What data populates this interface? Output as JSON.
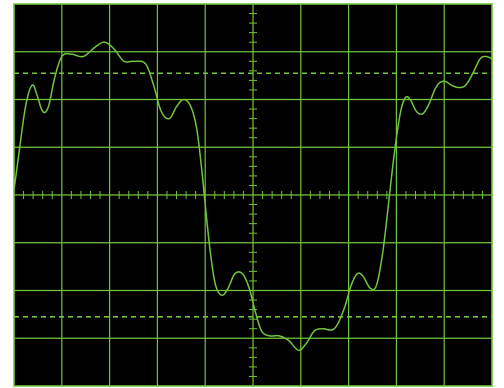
{
  "oscilloscope": {
    "screen_color": "#000000",
    "graticule_color": "#71c43f",
    "trace_color": "#71c43f",
    "cursor_line_color": "#71c43f",
    "grid": {
      "major_divisions_x": 10,
      "major_divisions_y": 8,
      "minor_ticks_per_division": 5,
      "dashed_cursor_lines": true
    }
  },
  "chart_data": {
    "type": "line",
    "title": "",
    "xlabel": "",
    "ylabel": "",
    "xlim": [
      0,
      10
    ],
    "ylim": [
      -4,
      4
    ],
    "grid": true,
    "cursor_levels": [
      2.55,
      -2.55
    ],
    "series": [
      {
        "points": [
          [
            0.0,
            0.1
          ],
          [
            0.12,
            1.0
          ],
          [
            0.25,
            1.9
          ],
          [
            0.38,
            2.3
          ],
          [
            0.48,
            2.1
          ],
          [
            0.6,
            1.75
          ],
          [
            0.72,
            1.85
          ],
          [
            0.85,
            2.45
          ],
          [
            1.0,
            2.9
          ],
          [
            1.2,
            2.95
          ],
          [
            1.45,
            2.9
          ],
          [
            1.7,
            3.1
          ],
          [
            1.9,
            3.2
          ],
          [
            2.1,
            3.05
          ],
          [
            2.3,
            2.8
          ],
          [
            2.5,
            2.8
          ],
          [
            2.75,
            2.75
          ],
          [
            2.92,
            2.3
          ],
          [
            3.08,
            1.75
          ],
          [
            3.25,
            1.6
          ],
          [
            3.4,
            1.85
          ],
          [
            3.55,
            2.0
          ],
          [
            3.7,
            1.85
          ],
          [
            3.82,
            1.4
          ],
          [
            3.92,
            0.6
          ],
          [
            4.02,
            -0.4
          ],
          [
            4.12,
            -1.3
          ],
          [
            4.22,
            -1.9
          ],
          [
            4.35,
            -2.1
          ],
          [
            4.48,
            -1.95
          ],
          [
            4.62,
            -1.65
          ],
          [
            4.78,
            -1.65
          ],
          [
            4.92,
            -1.95
          ],
          [
            5.05,
            -2.45
          ],
          [
            5.18,
            -2.85
          ],
          [
            5.35,
            -2.95
          ],
          [
            5.55,
            -2.95
          ],
          [
            5.75,
            -3.05
          ],
          [
            5.95,
            -3.25
          ],
          [
            6.12,
            -3.1
          ],
          [
            6.28,
            -2.85
          ],
          [
            6.45,
            -2.8
          ],
          [
            6.7,
            -2.8
          ],
          [
            6.9,
            -2.4
          ],
          [
            7.05,
            -1.9
          ],
          [
            7.18,
            -1.65
          ],
          [
            7.3,
            -1.7
          ],
          [
            7.45,
            -1.95
          ],
          [
            7.58,
            -1.9
          ],
          [
            7.7,
            -1.3
          ],
          [
            7.8,
            -0.5
          ],
          [
            7.9,
            0.4
          ],
          [
            8.0,
            1.2
          ],
          [
            8.1,
            1.8
          ],
          [
            8.2,
            2.05
          ],
          [
            8.3,
            1.98
          ],
          [
            8.42,
            1.75
          ],
          [
            8.55,
            1.7
          ],
          [
            8.68,
            1.9
          ],
          [
            8.8,
            2.2
          ],
          [
            8.9,
            2.35
          ],
          [
            9.02,
            2.38
          ],
          [
            9.15,
            2.3
          ],
          [
            9.3,
            2.25
          ],
          [
            9.45,
            2.3
          ],
          [
            9.6,
            2.55
          ],
          [
            9.75,
            2.85
          ],
          [
            9.88,
            2.9
          ],
          [
            10.0,
            2.85
          ]
        ]
      }
    ]
  }
}
